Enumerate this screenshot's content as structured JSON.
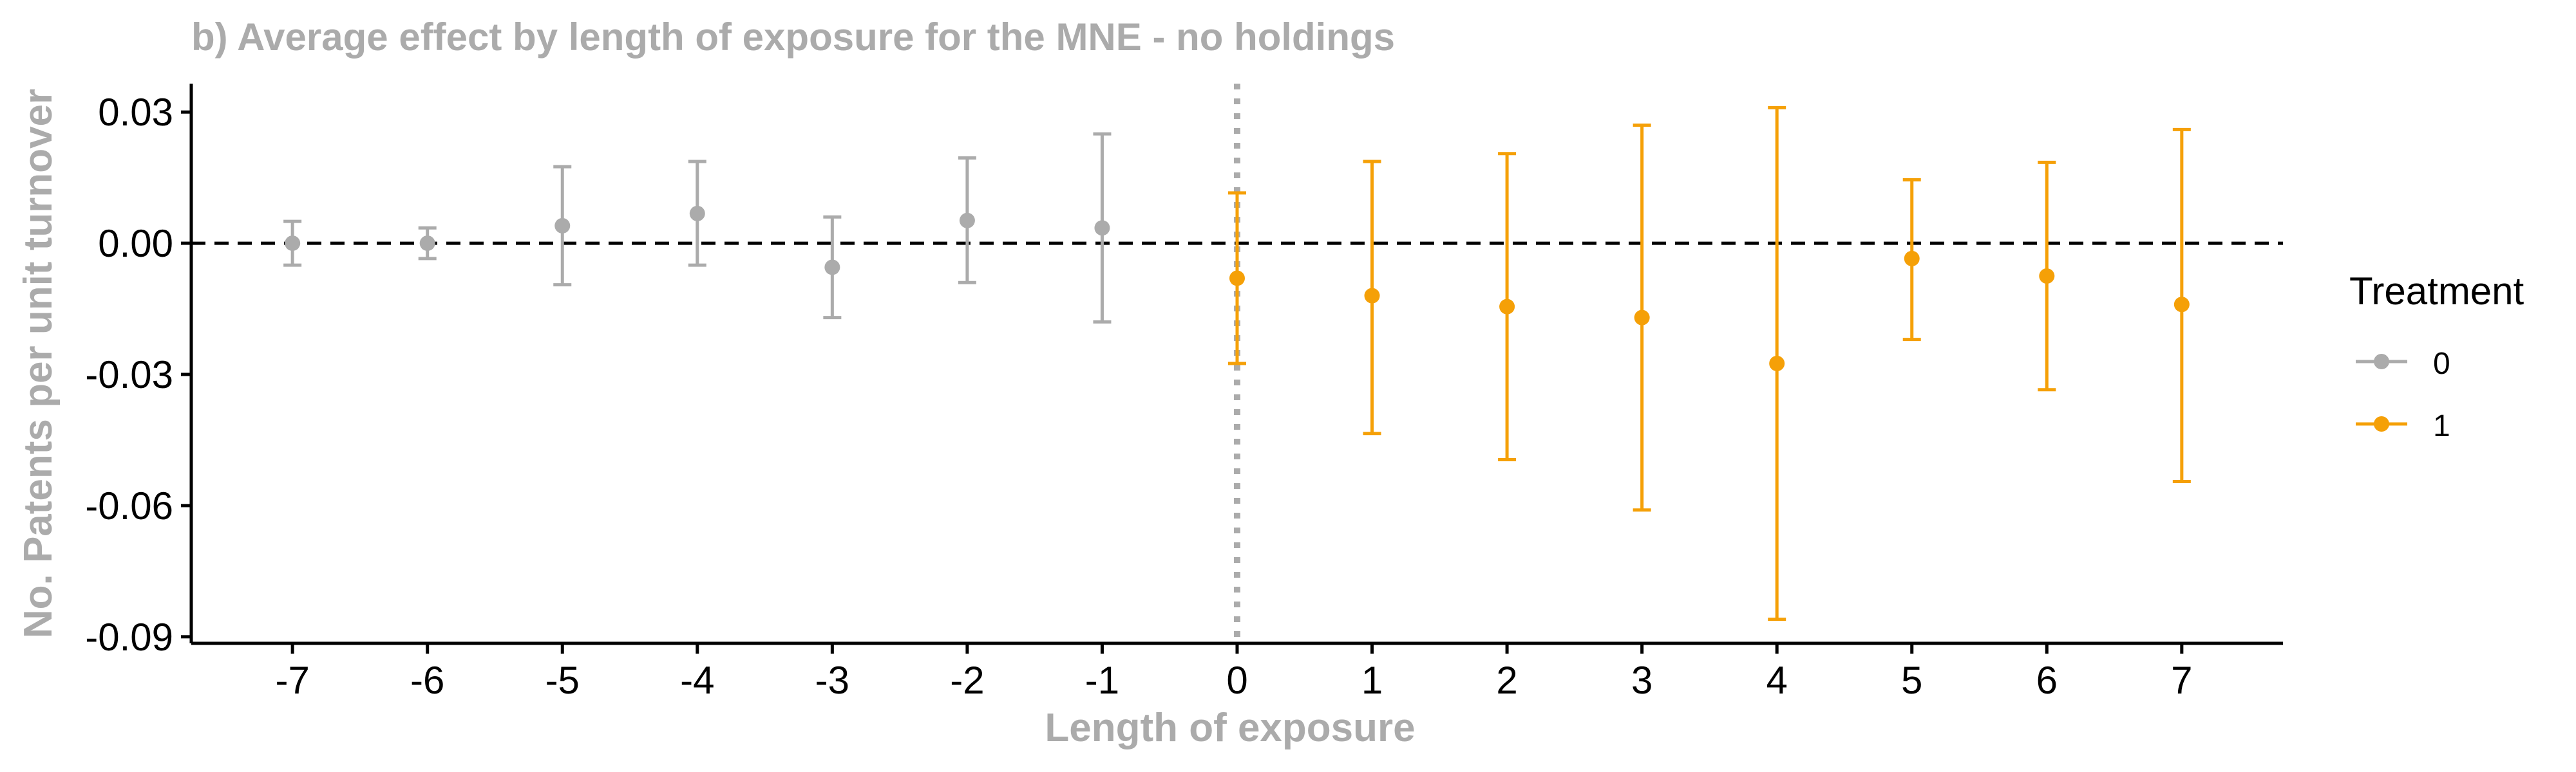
{
  "chart_data": {
    "type": "scatter",
    "title": "b) Average effect by length of exposure for the MNE - no holdings",
    "xlabel": "Length of exposure",
    "ylabel": "No. Patents per unit turnover",
    "x_ticks": [
      "-7",
      "-6",
      "-5",
      "-4",
      "-3",
      "-2",
      "-1",
      "0",
      "1",
      "2",
      "3",
      "4",
      "5",
      "6",
      "7"
    ],
    "y_ticks": [
      "0.03",
      "0.00",
      "-0.03",
      "-0.06",
      "-0.09"
    ],
    "y_tick_values": [
      0.03,
      0.0,
      -0.03,
      -0.06,
      -0.09
    ],
    "xlim": [
      -7.75,
      7.75
    ],
    "ylim": [
      -0.0915,
      0.0365
    ],
    "reference_lines": {
      "horizontal": 0,
      "vertical": 0
    },
    "grid": false,
    "legend": {
      "title": "Treatment",
      "position": "right",
      "entries": [
        {
          "label": "0",
          "color": "#ababab"
        },
        {
          "label": "1",
          "color": "#f5a007"
        }
      ]
    },
    "series": [
      {
        "name": "0",
        "color": "#ababab",
        "points": [
          {
            "x": -7,
            "y": 0.0,
            "lower": -0.005,
            "upper": 0.005
          },
          {
            "x": -6,
            "y": 0.0,
            "lower": -0.0035,
            "upper": 0.0035
          },
          {
            "x": -5,
            "y": 0.004,
            "lower": -0.0095,
            "upper": 0.0175
          },
          {
            "x": -4,
            "y": 0.0068,
            "lower": -0.005,
            "upper": 0.0187
          },
          {
            "x": -3,
            "y": -0.0055,
            "lower": -0.017,
            "upper": 0.006
          },
          {
            "x": -2,
            "y": 0.0052,
            "lower": -0.009,
            "upper": 0.0195
          },
          {
            "x": -1,
            "y": 0.0035,
            "lower": -0.018,
            "upper": 0.025
          }
        ]
      },
      {
        "name": "1",
        "color": "#f5a007",
        "points": [
          {
            "x": 0,
            "y": -0.008,
            "lower": -0.0275,
            "upper": 0.0115
          },
          {
            "x": 1,
            "y": -0.012,
            "lower": -0.0435,
            "upper": 0.0187
          },
          {
            "x": 2,
            "y": -0.0145,
            "lower": -0.0495,
            "upper": 0.0205
          },
          {
            "x": 3,
            "y": -0.017,
            "lower": -0.061,
            "upper": 0.027
          },
          {
            "x": 4,
            "y": -0.0275,
            "lower": -0.086,
            "upper": 0.031
          },
          {
            "x": 5,
            "y": -0.0035,
            "lower": -0.022,
            "upper": 0.0145
          },
          {
            "x": 6,
            "y": -0.0075,
            "lower": -0.0335,
            "upper": 0.0185
          },
          {
            "x": 7,
            "y": -0.014,
            "lower": -0.0545,
            "upper": 0.026
          }
        ]
      }
    ]
  }
}
